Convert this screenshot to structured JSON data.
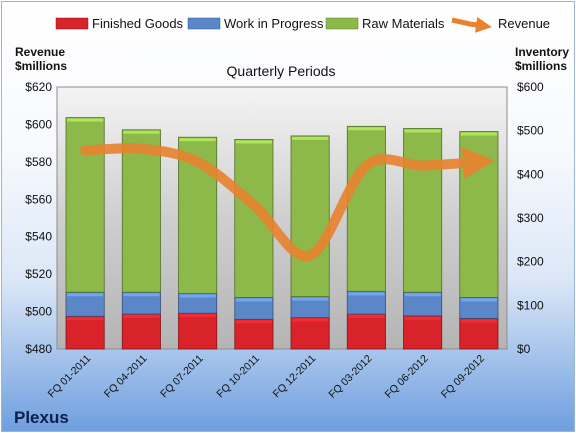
{
  "chart_data": {
    "type": "bar",
    "stacked": true,
    "title": "Quarterly Periods",
    "company": "Plexus",
    "categories": [
      "FQ 01-2011",
      "FQ 04-2011",
      "FQ 07-2011",
      "FQ 10-2011",
      "FQ 12-2011",
      "FQ 03-2012",
      "FQ 06-2012",
      "FQ 09-2012"
    ],
    "left_axis": {
      "label_line1": "Revenue",
      "label_line2": "$millions",
      "range": [
        480,
        620
      ],
      "ticks": [
        "$620",
        "$600",
        "$580",
        "$560",
        "$540",
        "$520",
        "$500",
        "$480"
      ]
    },
    "right_axis": {
      "label_line1": "Inventory",
      "label_line2": "$millions",
      "range": [
        0,
        600
      ],
      "ticks": [
        "$600",
        "$500",
        "$400",
        "$300",
        "$200",
        "$100",
        "$0"
      ]
    },
    "series": [
      {
        "name": "Finished Goods",
        "axis": "right",
        "color": "#d8232a",
        "values": [
          75,
          80,
          82,
          68,
          72,
          80,
          76,
          70
        ]
      },
      {
        "name": "Work in Progress",
        "axis": "right",
        "color": "#5b86c8",
        "values": [
          55,
          50,
          45,
          50,
          48,
          52,
          54,
          48
        ]
      },
      {
        "name": "Raw Materials",
        "axis": "right",
        "color": "#8db84a",
        "values": [
          400,
          372,
          358,
          362,
          368,
          378,
          375,
          380
        ]
      },
      {
        "name": "Revenue",
        "axis": "left",
        "color": "#e8822f",
        "type": "line",
        "values": [
          586,
          587,
          580,
          557,
          530,
          578,
          578,
          580
        ]
      }
    ],
    "legend_position": "top",
    "grid": false
  }
}
